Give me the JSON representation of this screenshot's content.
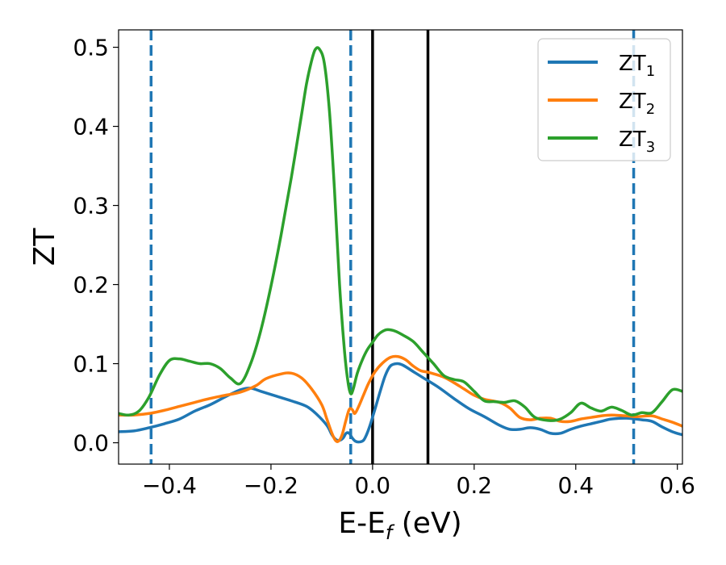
{
  "chart_data": {
    "type": "line",
    "xlabel": "E-E",
    "xlabel_sub": "f",
    "xlabel_suffix": " (eV)",
    "ylabel": "ZT",
    "xlim": [
      -0.5,
      0.61
    ],
    "ylim": [
      -0.027,
      0.522
    ],
    "xticks": [
      -0.4,
      -0.2,
      0.0,
      0.2,
      0.4,
      0.6
    ],
    "xtick_labels": [
      "−0.4",
      "−0.2",
      "0.0",
      "0.2",
      "0.4",
      "0.6"
    ],
    "yticks": [
      0.0,
      0.1,
      0.2,
      0.3,
      0.4,
      0.5
    ],
    "ytick_labels": [
      "0.0",
      "0.1",
      "0.2",
      "0.3",
      "0.4",
      "0.5"
    ],
    "grid": false,
    "legend_position": "top-right",
    "vlines": [
      {
        "x": -0.436,
        "style": "dashed",
        "color": "#1f77b4"
      },
      {
        "x": -0.043,
        "style": "dashed",
        "color": "#1f77b4"
      },
      {
        "x": 0.0,
        "style": "solid",
        "color": "#000000"
      },
      {
        "x": 0.109,
        "style": "solid",
        "color": "#000000"
      },
      {
        "x": 0.514,
        "style": "dashed",
        "color": "#1f77b4"
      }
    ],
    "series": [
      {
        "name": "ZT",
        "sub": "1",
        "color": "#1f77b4",
        "points": [
          [
            -0.5,
            0.014
          ],
          [
            -0.47,
            0.015
          ],
          [
            -0.44,
            0.019
          ],
          [
            -0.41,
            0.024
          ],
          [
            -0.38,
            0.03
          ],
          [
            -0.35,
            0.04
          ],
          [
            -0.32,
            0.048
          ],
          [
            -0.29,
            0.058
          ],
          [
            -0.26,
            0.067
          ],
          [
            -0.24,
            0.069
          ],
          [
            -0.22,
            0.065
          ],
          [
            -0.19,
            0.059
          ],
          [
            -0.16,
            0.053
          ],
          [
            -0.13,
            0.046
          ],
          [
            -0.11,
            0.036
          ],
          [
            -0.09,
            0.022
          ],
          [
            -0.08,
            0.01
          ],
          [
            -0.072,
            0.004
          ],
          [
            -0.065,
            0.003
          ],
          [
            -0.058,
            0.006
          ],
          [
            -0.052,
            0.012
          ],
          [
            -0.046,
            0.012
          ],
          [
            -0.04,
            0.006
          ],
          [
            -0.034,
            0.002
          ],
          [
            -0.026,
            0.001
          ],
          [
            -0.018,
            0.003
          ],
          [
            -0.012,
            0.01
          ],
          [
            -0.005,
            0.022
          ],
          [
            0.005,
            0.043
          ],
          [
            0.015,
            0.065
          ],
          [
            0.025,
            0.085
          ],
          [
            0.035,
            0.097
          ],
          [
            0.048,
            0.1
          ],
          [
            0.06,
            0.098
          ],
          [
            0.08,
            0.09
          ],
          [
            0.1,
            0.082
          ],
          [
            0.13,
            0.07
          ],
          [
            0.16,
            0.056
          ],
          [
            0.19,
            0.043
          ],
          [
            0.22,
            0.033
          ],
          [
            0.25,
            0.022
          ],
          [
            0.27,
            0.017
          ],
          [
            0.29,
            0.017
          ],
          [
            0.31,
            0.019
          ],
          [
            0.33,
            0.017
          ],
          [
            0.35,
            0.012
          ],
          [
            0.37,
            0.012
          ],
          [
            0.39,
            0.017
          ],
          [
            0.41,
            0.021
          ],
          [
            0.43,
            0.024
          ],
          [
            0.45,
            0.027
          ],
          [
            0.47,
            0.03
          ],
          [
            0.5,
            0.031
          ],
          [
            0.53,
            0.029
          ],
          [
            0.55,
            0.027
          ],
          [
            0.57,
            0.02
          ],
          [
            0.59,
            0.014
          ],
          [
            0.61,
            0.01
          ]
        ]
      },
      {
        "name": "ZT",
        "sub": "2",
        "color": "#ff7f0e",
        "points": [
          [
            -0.5,
            0.035
          ],
          [
            -0.47,
            0.035
          ],
          [
            -0.44,
            0.037
          ],
          [
            -0.41,
            0.041
          ],
          [
            -0.38,
            0.046
          ],
          [
            -0.35,
            0.051
          ],
          [
            -0.32,
            0.056
          ],
          [
            -0.29,
            0.06
          ],
          [
            -0.26,
            0.064
          ],
          [
            -0.23,
            0.072
          ],
          [
            -0.21,
            0.081
          ],
          [
            -0.18,
            0.087
          ],
          [
            -0.16,
            0.088
          ],
          [
            -0.14,
            0.082
          ],
          [
            -0.12,
            0.068
          ],
          [
            -0.1,
            0.048
          ],
          [
            -0.09,
            0.03
          ],
          [
            -0.08,
            0.012
          ],
          [
            -0.073,
            0.003
          ],
          [
            -0.067,
            0.002
          ],
          [
            -0.06,
            0.01
          ],
          [
            -0.053,
            0.027
          ],
          [
            -0.046,
            0.042
          ],
          [
            -0.04,
            0.042
          ],
          [
            -0.035,
            0.037
          ],
          [
            -0.028,
            0.045
          ],
          [
            -0.018,
            0.06
          ],
          [
            -0.008,
            0.075
          ],
          [
            0.005,
            0.09
          ],
          [
            0.02,
            0.101
          ],
          [
            0.035,
            0.108
          ],
          [
            0.05,
            0.109
          ],
          [
            0.065,
            0.105
          ],
          [
            0.08,
            0.097
          ],
          [
            0.095,
            0.091
          ],
          [
            0.11,
            0.089
          ],
          [
            0.14,
            0.083
          ],
          [
            0.16,
            0.076
          ],
          [
            0.18,
            0.068
          ],
          [
            0.2,
            0.06
          ],
          [
            0.22,
            0.055
          ],
          [
            0.25,
            0.051
          ],
          [
            0.27,
            0.044
          ],
          [
            0.29,
            0.032
          ],
          [
            0.31,
            0.029
          ],
          [
            0.33,
            0.031
          ],
          [
            0.35,
            0.031
          ],
          [
            0.37,
            0.027
          ],
          [
            0.39,
            0.027
          ],
          [
            0.41,
            0.03
          ],
          [
            0.43,
            0.032
          ],
          [
            0.45,
            0.034
          ],
          [
            0.47,
            0.035
          ],
          [
            0.5,
            0.034
          ],
          [
            0.52,
            0.033
          ],
          [
            0.55,
            0.034
          ],
          [
            0.57,
            0.03
          ],
          [
            0.59,
            0.026
          ],
          [
            0.61,
            0.021
          ]
        ]
      },
      {
        "name": "ZT",
        "sub": "3",
        "color": "#2ca02c",
        "points": [
          [
            -0.5,
            0.037
          ],
          [
            -0.48,
            0.035
          ],
          [
            -0.46,
            0.04
          ],
          [
            -0.44,
            0.058
          ],
          [
            -0.42,
            0.085
          ],
          [
            -0.4,
            0.104
          ],
          [
            -0.38,
            0.106
          ],
          [
            -0.36,
            0.103
          ],
          [
            -0.34,
            0.1
          ],
          [
            -0.32,
            0.1
          ],
          [
            -0.3,
            0.094
          ],
          [
            -0.28,
            0.082
          ],
          [
            -0.26,
            0.075
          ],
          [
            -0.24,
            0.1
          ],
          [
            -0.22,
            0.142
          ],
          [
            -0.2,
            0.198
          ],
          [
            -0.18,
            0.263
          ],
          [
            -0.16,
            0.335
          ],
          [
            -0.14,
            0.414
          ],
          [
            -0.13,
            0.454
          ],
          [
            -0.12,
            0.483
          ],
          [
            -0.113,
            0.497
          ],
          [
            -0.105,
            0.498
          ],
          [
            -0.095,
            0.48
          ],
          [
            -0.085,
            0.42
          ],
          [
            -0.075,
            0.32
          ],
          [
            -0.065,
            0.2
          ],
          [
            -0.055,
            0.114
          ],
          [
            -0.048,
            0.075
          ],
          [
            -0.043,
            0.062
          ],
          [
            -0.038,
            0.068
          ],
          [
            -0.03,
            0.088
          ],
          [
            -0.02,
            0.105
          ],
          [
            -0.01,
            0.118
          ],
          [
            0.0,
            0.127
          ],
          [
            0.01,
            0.136
          ],
          [
            0.02,
            0.141
          ],
          [
            0.03,
            0.143
          ],
          [
            0.045,
            0.141
          ],
          [
            0.06,
            0.136
          ],
          [
            0.08,
            0.128
          ],
          [
            0.1,
            0.114
          ],
          [
            0.12,
            0.1
          ],
          [
            0.14,
            0.085
          ],
          [
            0.16,
            0.08
          ],
          [
            0.18,
            0.077
          ],
          [
            0.2,
            0.065
          ],
          [
            0.22,
            0.053
          ],
          [
            0.24,
            0.052
          ],
          [
            0.26,
            0.051
          ],
          [
            0.28,
            0.053
          ],
          [
            0.3,
            0.045
          ],
          [
            0.32,
            0.032
          ],
          [
            0.35,
            0.028
          ],
          [
            0.37,
            0.03
          ],
          [
            0.39,
            0.038
          ],
          [
            0.41,
            0.05
          ],
          [
            0.43,
            0.044
          ],
          [
            0.45,
            0.04
          ],
          [
            0.47,
            0.045
          ],
          [
            0.49,
            0.041
          ],
          [
            0.51,
            0.035
          ],
          [
            0.53,
            0.038
          ],
          [
            0.55,
            0.038
          ],
          [
            0.57,
            0.052
          ],
          [
            0.59,
            0.067
          ],
          [
            0.61,
            0.065
          ]
        ]
      }
    ]
  }
}
